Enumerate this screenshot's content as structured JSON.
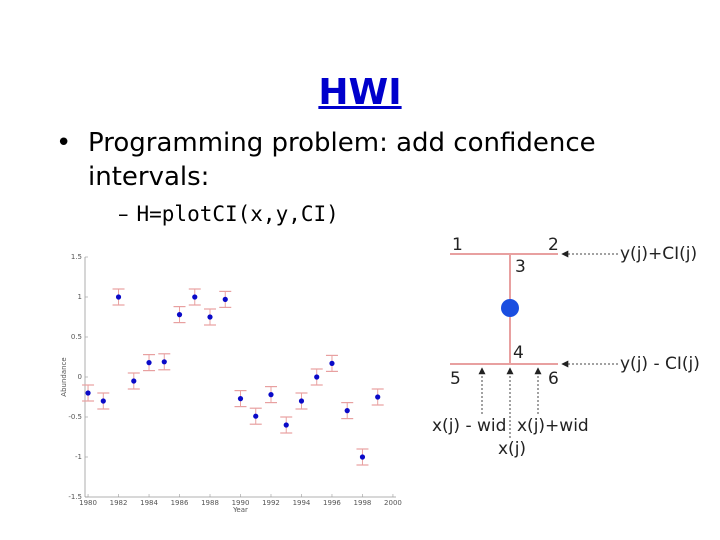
{
  "slide": {
    "title": "HWI",
    "bullet_marker": "•",
    "bullet": "Programming problem: add confidence intervals:",
    "sub_marker": "–",
    "sub_bullet": "H=plotCI(x,y,CI)"
  },
  "chart_data": {
    "type": "scatter",
    "xlabel": "Year",
    "ylabel": "Abundance",
    "xlim": [
      1979.8,
      2000.2
    ],
    "ylim": [
      -1.5,
      1.5
    ],
    "x_ticks": [
      "1980",
      "1982",
      "1984",
      "1986",
      "1988",
      "1990",
      "1992",
      "1994",
      "1996",
      "1998",
      "2000"
    ],
    "x_tick_values": [
      1980,
      1982,
      1984,
      1986,
      1988,
      1990,
      1992,
      1994,
      1996,
      1998,
      2000
    ],
    "y_ticks": [
      "1.5",
      "1",
      "0.5",
      "0",
      "-0.5",
      "-1",
      "-1.5"
    ],
    "y_tick_values": [
      1.5,
      1,
      0.5,
      0,
      -0.5,
      -1,
      -1.5
    ],
    "point_color": "#0a0ac8",
    "errorbar_color": "#e8a0a0",
    "points": [
      {
        "x": 1980,
        "y": -0.2,
        "ci": 0.1
      },
      {
        "x": 1981,
        "y": -0.3,
        "ci": 0.1
      },
      {
        "x": 1982,
        "y": 1.0,
        "ci": 0.1
      },
      {
        "x": 1983,
        "y": -0.05,
        "ci": 0.1
      },
      {
        "x": 1984,
        "y": 0.18,
        "ci": 0.1
      },
      {
        "x": 1985,
        "y": 0.19,
        "ci": 0.1
      },
      {
        "x": 1986,
        "y": 0.78,
        "ci": 0.1
      },
      {
        "x": 1987,
        "y": 1.0,
        "ci": 0.1
      },
      {
        "x": 1988,
        "y": 0.75,
        "ci": 0.1
      },
      {
        "x": 1989,
        "y": 0.97,
        "ci": 0.1
      },
      {
        "x": 1990,
        "y": -0.27,
        "ci": 0.1
      },
      {
        "x": 1991,
        "y": -0.49,
        "ci": 0.1
      },
      {
        "x": 1992,
        "y": -0.22,
        "ci": 0.1
      },
      {
        "x": 1993,
        "y": -0.6,
        "ci": 0.1
      },
      {
        "x": 1994,
        "y": -0.3,
        "ci": 0.1
      },
      {
        "x": 1995,
        "y": 0.0,
        "ci": 0.1
      },
      {
        "x": 1996,
        "y": 0.17,
        "ci": 0.1
      },
      {
        "x": 1997,
        "y": -0.42,
        "ci": 0.1
      },
      {
        "x": 1998,
        "y": -1.0,
        "ci": 0.1
      },
      {
        "x": 1999,
        "y": -0.25,
        "ci": 0.1
      }
    ]
  },
  "diagram": {
    "label_1": "1",
    "label_2": "2",
    "label_3": "3",
    "label_4": "4",
    "label_5": "5",
    "label_6": "6",
    "upper_label": "y(j)+CI(j)",
    "lower_label": "y(j) - CI(j)",
    "left_label": "x(j) - wid",
    "right_label": "x(j)+wid",
    "center_label": "x(j)",
    "line_color": "#e8a0a0",
    "point_color": "#1a4ee0"
  }
}
